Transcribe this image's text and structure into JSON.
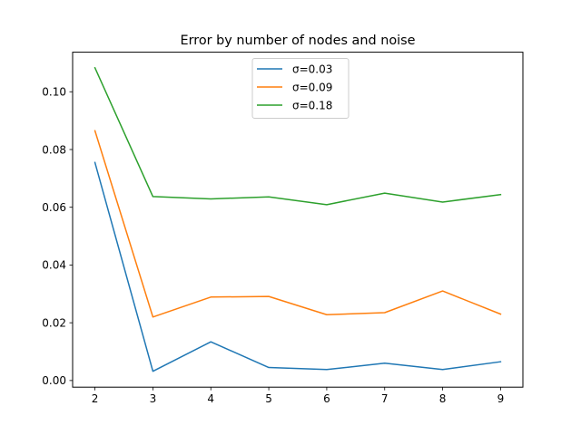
{
  "chart_data": {
    "type": "line",
    "title": "Error by number of nodes and noise",
    "xlabel": "",
    "ylabel": "",
    "x": [
      2,
      3,
      4,
      5,
      6,
      7,
      8,
      9
    ],
    "xlim": [
      1.615,
      9.385
    ],
    "ylim": [
      -0.0023,
      0.1137
    ],
    "xticks": [
      "2",
      "3",
      "4",
      "5",
      "6",
      "7",
      "8",
      "9"
    ],
    "yticks": [
      "0.00",
      "0.02",
      "0.04",
      "0.06",
      "0.08",
      "0.10"
    ],
    "ytick_values": [
      0.0,
      0.02,
      0.04,
      0.06,
      0.08,
      0.1
    ],
    "grid": false,
    "legend_position": "upper center",
    "series": [
      {
        "name": "σ=0.03",
        "color": "#1f77b4",
        "values": [
          0.0755,
          0.0032,
          0.0134,
          0.0045,
          0.0038,
          0.006,
          0.0038,
          0.0065
        ]
      },
      {
        "name": "σ=0.09",
        "color": "#ff7f0e",
        "values": [
          0.0865,
          0.022,
          0.0289,
          0.0291,
          0.0228,
          0.0235,
          0.031,
          0.023
        ]
      },
      {
        "name": "σ=0.18",
        "color": "#2ca02c",
        "values": [
          0.1083,
          0.0637,
          0.0629,
          0.0636,
          0.0609,
          0.0649,
          0.0618,
          0.0644
        ]
      }
    ]
  }
}
